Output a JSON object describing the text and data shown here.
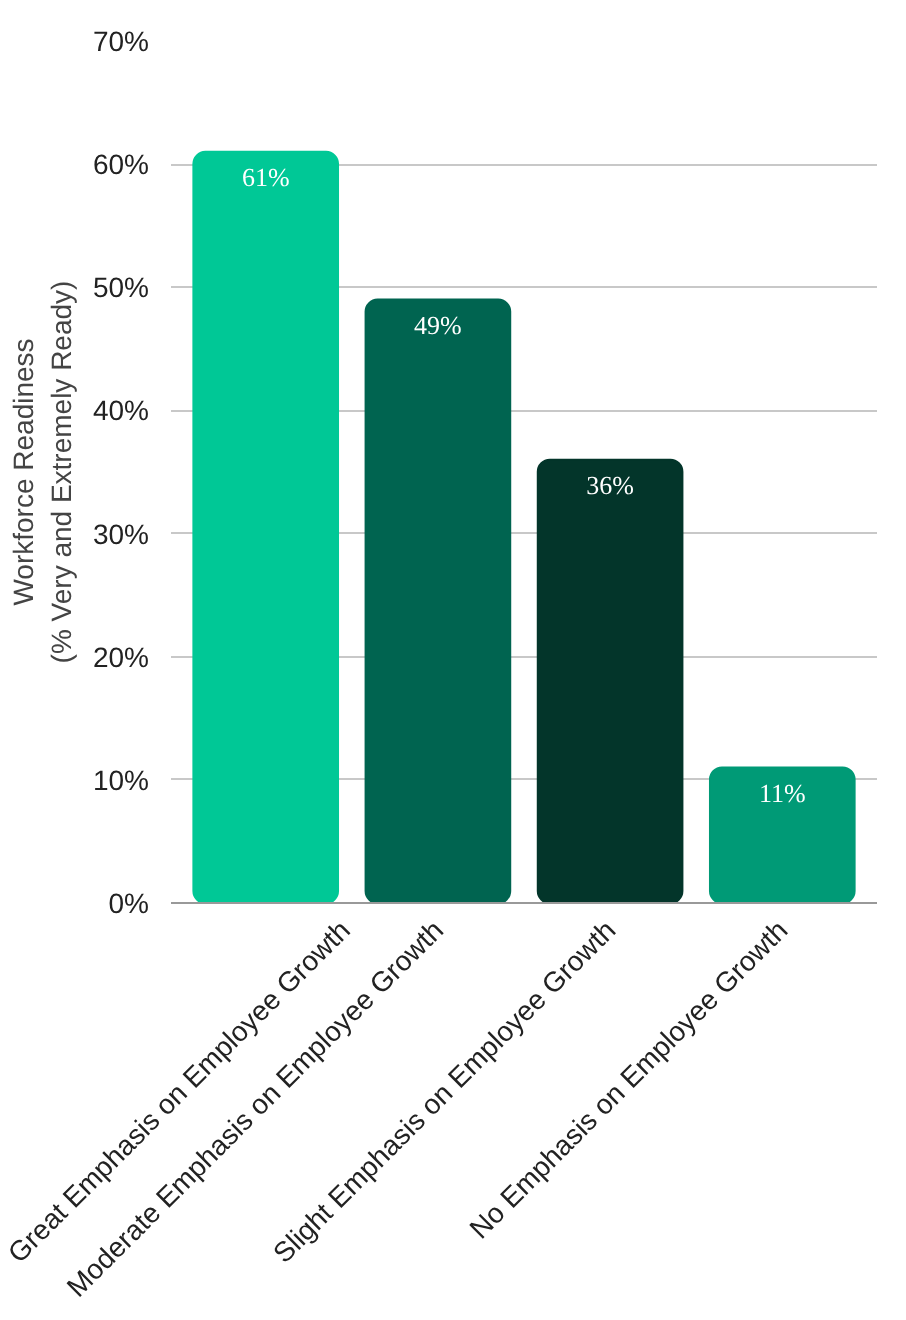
{
  "chart_data": {
    "type": "bar",
    "ylabel": "Workforce Readiness\n(% Very and Extremely Ready)",
    "categories": [
      "Great Emphasis on Employee Growth",
      "Moderate Emphasis on Employee Growth",
      "Slight Emphasis on Employee Growth",
      "No Emphasis on Employee Growth"
    ],
    "values": [
      61,
      49,
      36,
      11
    ],
    "colors": [
      "#00c896",
      "#006450",
      "#03352a",
      "#009a76"
    ],
    "value_labels": [
      "61%",
      "49%",
      "36%",
      "11%"
    ],
    "ylim": [
      0,
      70
    ],
    "yticks": [
      {
        "value": 0,
        "label": "0%"
      },
      {
        "value": 10,
        "label": "10%"
      },
      {
        "value": 20,
        "label": "20%"
      },
      {
        "value": 30,
        "label": "30%"
      },
      {
        "value": 40,
        "label": "40%"
      },
      {
        "value": 50,
        "label": "50%"
      },
      {
        "value": 60,
        "label": "60%"
      },
      {
        "value": 70,
        "label": "70%"
      }
    ],
    "grid": "y"
  }
}
